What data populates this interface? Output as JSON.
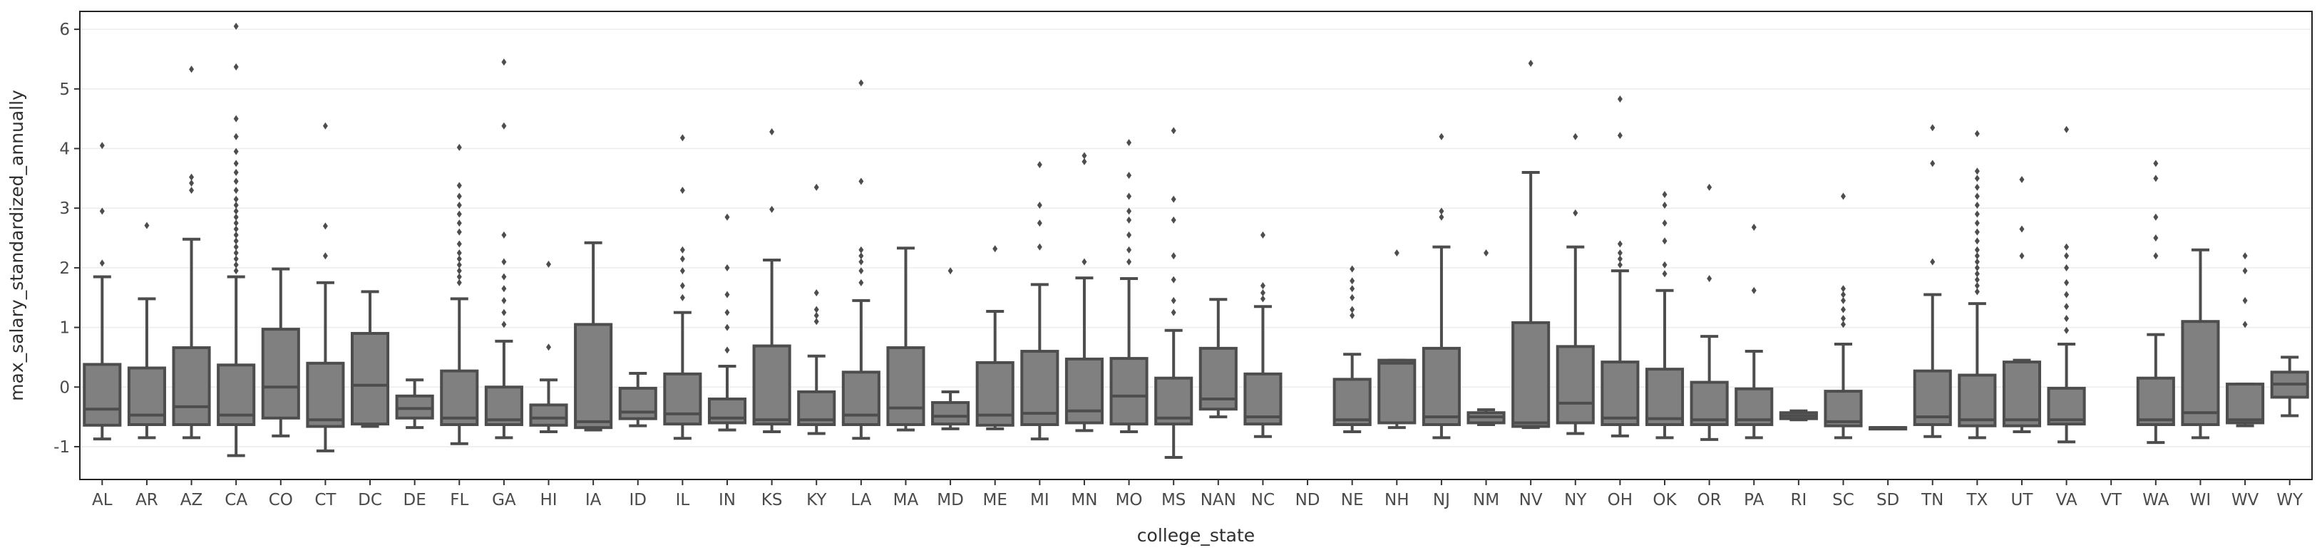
{
  "chart_data": {
    "type": "box",
    "xlabel": "college_state",
    "ylabel": "max_salary_standardized_annually",
    "ylim": [
      -1.55,
      6.3
    ],
    "yticks": [
      -1,
      0,
      1,
      2,
      3,
      4,
      5,
      6
    ],
    "grid": "horizontal, faint",
    "box_color": "#808080",
    "line_color": "#4d4d4d",
    "categories": [
      "AL",
      "AR",
      "AZ",
      "CA",
      "CO",
      "CT",
      "DC",
      "DE",
      "FL",
      "GA",
      "HI",
      "IA",
      "ID",
      "IL",
      "IN",
      "KS",
      "KY",
      "LA",
      "MA",
      "MD",
      "ME",
      "MI",
      "MN",
      "MO",
      "MS",
      "NAN",
      "NC",
      "ND",
      "NE",
      "NH",
      "NJ",
      "NM",
      "NV",
      "NY",
      "OH",
      "OK",
      "OR",
      "PA",
      "RI",
      "SC",
      "SD",
      "TN",
      "TX",
      "UT",
      "VA",
      "VT",
      "WA",
      "WI",
      "WV",
      "WY"
    ],
    "boxes": [
      {
        "wl": -0.87,
        "q1": -0.64,
        "med": -0.37,
        "q3": 0.38,
        "wh": 1.85,
        "out": [
          2.08,
          2.95,
          4.05
        ]
      },
      {
        "wl": -0.85,
        "q1": -0.63,
        "med": -0.47,
        "q3": 0.32,
        "wh": 1.48,
        "out": [
          2.71
        ]
      },
      {
        "wl": -0.85,
        "q1": -0.63,
        "med": -0.33,
        "q3": 0.66,
        "wh": 2.48,
        "out": [
          3.3,
          3.42,
          3.52,
          5.33
        ]
      },
      {
        "wl": -1.15,
        "q1": -0.63,
        "med": -0.47,
        "q3": 0.37,
        "wh": 1.85,
        "out": [
          1.95,
          2.05,
          2.15,
          2.25,
          2.35,
          2.45,
          2.55,
          2.65,
          2.75,
          2.85,
          2.95,
          3.05,
          3.15,
          3.3,
          3.45,
          3.6,
          3.75,
          3.95,
          4.2,
          4.5,
          5.37,
          6.05
        ]
      },
      {
        "wl": -0.82,
        "q1": -0.52,
        "med": 0.0,
        "q3": 0.97,
        "wh": 1.98,
        "out": []
      },
      {
        "wl": -1.07,
        "q1": -0.66,
        "med": -0.55,
        "q3": 0.4,
        "wh": 1.75,
        "out": [
          2.2,
          2.7,
          4.38
        ]
      },
      {
        "wl": -0.66,
        "q1": -0.62,
        "med": 0.03,
        "q3": 0.9,
        "wh": 1.6,
        "out": []
      },
      {
        "wl": -0.68,
        "q1": -0.52,
        "med": -0.36,
        "q3": -0.15,
        "wh": 0.12,
        "out": []
      },
      {
        "wl": -0.95,
        "q1": -0.63,
        "med": -0.52,
        "q3": 0.27,
        "wh": 1.48,
        "out": [
          1.75,
          1.85,
          1.95,
          2.05,
          2.15,
          2.25,
          2.4,
          2.6,
          2.75,
          2.9,
          3.05,
          3.2,
          3.38,
          4.02
        ]
      },
      {
        "wl": -0.85,
        "q1": -0.63,
        "med": -0.55,
        "q3": 0.0,
        "wh": 0.77,
        "out": [
          1.05,
          1.25,
          1.45,
          1.65,
          1.85,
          2.1,
          2.55,
          4.38,
          5.45
        ]
      },
      {
        "wl": -0.75,
        "q1": -0.64,
        "med": -0.52,
        "q3": -0.3,
        "wh": 0.12,
        "out": [
          0.67,
          2.06
        ]
      },
      {
        "wl": -0.72,
        "q1": -0.68,
        "med": -0.58,
        "q3": 1.05,
        "wh": 2.42,
        "out": []
      },
      {
        "wl": -0.65,
        "q1": -0.53,
        "med": -0.42,
        "q3": -0.02,
        "wh": 0.23,
        "out": []
      },
      {
        "wl": -0.86,
        "q1": -0.62,
        "med": -0.45,
        "q3": 0.22,
        "wh": 1.25,
        "out": [
          1.5,
          1.7,
          1.95,
          2.15,
          2.3,
          3.3,
          4.18
        ]
      },
      {
        "wl": -0.72,
        "q1": -0.6,
        "med": -0.52,
        "q3": -0.2,
        "wh": 0.35,
        "out": [
          0.62,
          1.0,
          1.25,
          1.55,
          2.0,
          2.85
        ]
      },
      {
        "wl": -0.75,
        "q1": -0.62,
        "med": -0.55,
        "q3": 0.69,
        "wh": 2.13,
        "out": [
          2.98,
          4.28
        ]
      },
      {
        "wl": -0.78,
        "q1": -0.63,
        "med": -0.55,
        "q3": -0.08,
        "wh": 0.52,
        "out": [
          1.1,
          1.2,
          1.3,
          1.58,
          3.35
        ]
      },
      {
        "wl": -0.86,
        "q1": -0.63,
        "med": -0.47,
        "q3": 0.25,
        "wh": 1.45,
        "out": [
          1.75,
          1.95,
          2.1,
          2.2,
          2.3,
          3.45,
          5.1
        ]
      },
      {
        "wl": -0.72,
        "q1": -0.63,
        "med": -0.35,
        "q3": 0.66,
        "wh": 2.33,
        "out": []
      },
      {
        "wl": -0.7,
        "q1": -0.62,
        "med": -0.49,
        "q3": -0.26,
        "wh": -0.08,
        "out": [
          1.95
        ]
      },
      {
        "wl": -0.7,
        "q1": -0.64,
        "med": -0.47,
        "q3": 0.41,
        "wh": 1.27,
        "out": [
          2.32
        ]
      },
      {
        "wl": -0.87,
        "q1": -0.63,
        "med": -0.44,
        "q3": 0.6,
        "wh": 1.72,
        "out": [
          2.35,
          2.75,
          3.05,
          3.73
        ]
      },
      {
        "wl": -0.73,
        "q1": -0.6,
        "med": -0.4,
        "q3": 0.47,
        "wh": 1.83,
        "out": [
          2.1,
          3.78,
          3.88
        ]
      },
      {
        "wl": -0.75,
        "q1": -0.62,
        "med": -0.15,
        "q3": 0.48,
        "wh": 1.82,
        "out": [
          2.1,
          2.3,
          2.55,
          2.8,
          2.95,
          3.2,
          3.55,
          4.1
        ]
      },
      {
        "wl": -1.18,
        "q1": -0.62,
        "med": -0.52,
        "q3": 0.15,
        "wh": 0.95,
        "out": [
          1.25,
          1.45,
          1.8,
          2.2,
          2.8,
          3.15,
          4.3
        ]
      },
      {
        "wl": -0.5,
        "q1": -0.37,
        "med": -0.2,
        "q3": 0.65,
        "wh": 1.47,
        "out": []
      },
      {
        "wl": -0.83,
        "q1": -0.62,
        "med": -0.5,
        "q3": 0.22,
        "wh": 1.35,
        "out": [
          1.48,
          1.58,
          1.7,
          2.55
        ]
      },
      null,
      {
        "wl": -0.75,
        "q1": -0.63,
        "med": -0.55,
        "q3": 0.13,
        "wh": 0.55,
        "out": [
          1.2,
          1.3,
          1.5,
          1.65,
          1.78,
          1.98
        ]
      },
      {
        "wl": -0.68,
        "q1": -0.6,
        "med": 0.4,
        "q3": 0.45,
        "wh": 0.45,
        "out": [
          2.25
        ]
      },
      {
        "wl": -0.85,
        "q1": -0.63,
        "med": -0.5,
        "q3": 0.65,
        "wh": 2.35,
        "out": [
          2.85,
          2.95,
          4.2
        ]
      },
      {
        "wl": -0.63,
        "q1": -0.6,
        "med": -0.5,
        "q3": -0.43,
        "wh": -0.38,
        "out": [
          2.25
        ]
      },
      {
        "wl": -0.68,
        "q1": -0.66,
        "med": -0.6,
        "q3": 1.08,
        "wh": 3.6,
        "out": [
          5.43
        ]
      },
      {
        "wl": -0.78,
        "q1": -0.6,
        "med": -0.27,
        "q3": 0.68,
        "wh": 2.35,
        "out": [
          2.92,
          4.2
        ]
      },
      {
        "wl": -0.82,
        "q1": -0.63,
        "med": -0.52,
        "q3": 0.42,
        "wh": 1.95,
        "out": [
          2.05,
          2.15,
          2.25,
          2.4,
          4.22,
          4.83
        ]
      },
      {
        "wl": -0.85,
        "q1": -0.63,
        "med": -0.53,
        "q3": 0.3,
        "wh": 1.62,
        "out": [
          1.9,
          2.05,
          2.45,
          2.75,
          3.05,
          3.23
        ]
      },
      {
        "wl": -0.88,
        "q1": -0.63,
        "med": -0.55,
        "q3": 0.08,
        "wh": 0.85,
        "out": [
          1.82,
          3.35
        ]
      },
      {
        "wl": -0.85,
        "q1": -0.63,
        "med": -0.55,
        "q3": -0.03,
        "wh": 0.6,
        "out": [
          1.62,
          2.68
        ]
      },
      {
        "wl": -0.55,
        "q1": -0.53,
        "med": -0.48,
        "q3": -0.43,
        "wh": -0.4,
        "out": []
      },
      {
        "wl": -0.85,
        "q1": -0.65,
        "med": -0.58,
        "q3": -0.07,
        "wh": 0.72,
        "out": [
          1.05,
          1.15,
          1.3,
          1.45,
          1.55,
          1.65,
          3.2
        ]
      },
      {
        "wl": -0.68,
        "q1": -0.68,
        "med": -0.68,
        "q3": -0.68,
        "wh": -0.68,
        "out": []
      },
      {
        "wl": -0.83,
        "q1": -0.63,
        "med": -0.5,
        "q3": 0.27,
        "wh": 1.55,
        "out": [
          2.1,
          3.75,
          4.35
        ]
      },
      {
        "wl": -0.85,
        "q1": -0.65,
        "med": -0.55,
        "q3": 0.2,
        "wh": 1.4,
        "out": [
          1.6,
          1.7,
          1.8,
          1.9,
          2.0,
          2.1,
          2.2,
          2.3,
          2.45,
          2.6,
          2.75,
          2.9,
          3.05,
          3.2,
          3.35,
          3.5,
          3.62,
          4.25
        ]
      },
      {
        "wl": -0.75,
        "q1": -0.65,
        "med": -0.55,
        "q3": 0.42,
        "wh": 0.45,
        "out": [
          2.2,
          2.65,
          3.48
        ]
      },
      {
        "wl": -0.92,
        "q1": -0.62,
        "med": -0.55,
        "q3": -0.02,
        "wh": 0.72,
        "out": [
          0.95,
          1.15,
          1.35,
          1.55,
          1.75,
          2.0,
          2.2,
          2.35,
          4.32
        ]
      },
      null,
      {
        "wl": -0.93,
        "q1": -0.63,
        "med": -0.55,
        "q3": 0.15,
        "wh": 0.88,
        "out": [
          2.2,
          2.5,
          2.85,
          3.5,
          3.75
        ]
      },
      {
        "wl": -0.85,
        "q1": -0.63,
        "med": -0.43,
        "q3": 1.1,
        "wh": 2.3,
        "out": []
      },
      {
        "wl": -0.65,
        "q1": -0.6,
        "med": -0.55,
        "q3": 0.05,
        "wh": 0.05,
        "out": [
          1.05,
          1.45,
          1.95,
          2.2
        ]
      },
      {
        "wl": -0.48,
        "q1": -0.17,
        "med": 0.05,
        "q3": 0.25,
        "wh": 0.5,
        "out": []
      }
    ]
  }
}
